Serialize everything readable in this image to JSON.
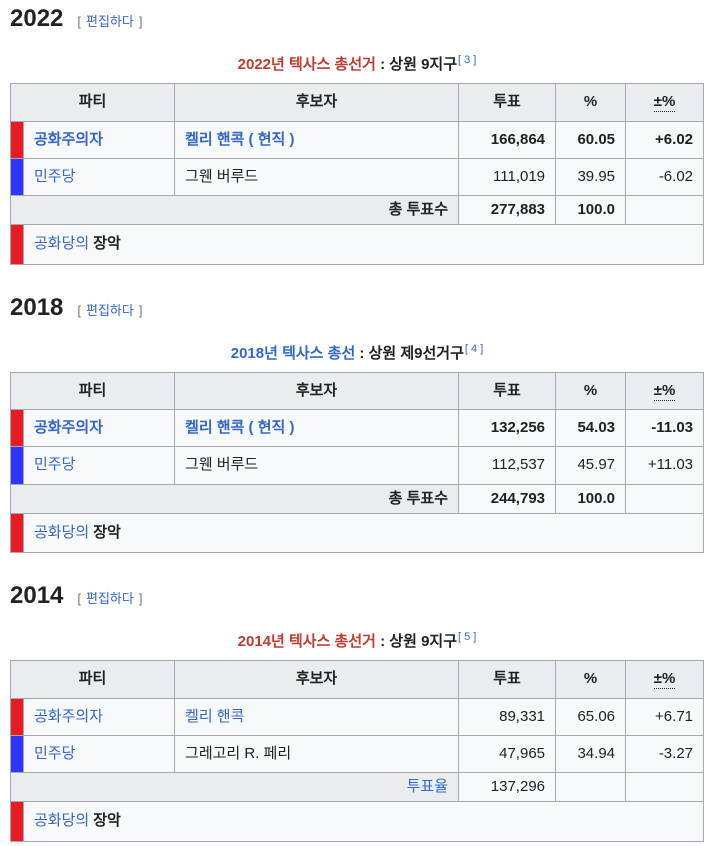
{
  "colors": {
    "republican": "#E81B23",
    "democratic": "#3333FF",
    "link_blue": "#3366CC",
    "red_link": "#BB3D30",
    "header_bg": "#EAECF0",
    "row_bg": "#F8F9FA",
    "border": "#A2A9B1",
    "text": "#202122"
  },
  "edit": {
    "bracket_open": "[",
    "label": "편집하다",
    "bracket_close": "]"
  },
  "table_headers": {
    "party": "파티",
    "candidate": "후보자",
    "votes": "투표",
    "percent": "%",
    "change": "±%"
  },
  "sections": [
    {
      "year": "2022",
      "caption": {
        "title": "2022년 텍사스 총선거",
        "suffix": " : 상원 9지구",
        "ref": "[ 3 ]"
      },
      "rows": [
        {
          "party": "공화주의자",
          "candidate": "켈리 핸콕 ( 현직 )",
          "votes": "166,864",
          "percent": "60.05",
          "change": "+6.02"
        },
        {
          "party": "민주당",
          "candidate": "그웬 버루드",
          "votes": "111,019",
          "percent": "39.95",
          "change": "-6.02"
        }
      ],
      "total": {
        "label": "총 투표수",
        "votes": "277,883",
        "percent": "100.0",
        "change": ""
      },
      "hold": {
        "link": "공화당의",
        "text": "장악"
      }
    },
    {
      "year": "2018",
      "caption": {
        "title": "2018년 텍사스 총선",
        "suffix": " : 상원 제9선거구",
        "ref": "[ 4 ]"
      },
      "rows": [
        {
          "party": "공화주의자",
          "candidate": "켈리 핸콕 ( 현직 )",
          "votes": "132,256",
          "percent": "54.03",
          "change": "-11.03"
        },
        {
          "party": "민주당",
          "candidate": "그웬 버루드",
          "votes": "112,537",
          "percent": "45.97",
          "change": "+11.03"
        }
      ],
      "total": {
        "label": "총 투표수",
        "votes": "244,793",
        "percent": "100.0",
        "change": ""
      },
      "hold": {
        "link": "공화당의",
        "text": "장악"
      }
    },
    {
      "year": "2014",
      "caption": {
        "title": "2014년 텍사스 총선거",
        "suffix": " : 상원 9지구",
        "ref": "[ 5 ]"
      },
      "rows": [
        {
          "party": "공화주의자",
          "candidate": "켈리 핸콕",
          "votes": "89,331",
          "percent": "65.06",
          "change": "+6.71"
        },
        {
          "party": "민주당",
          "candidate": "그레고리 R. 페리",
          "votes": "47,965",
          "percent": "34.94",
          "change": "-3.27"
        }
      ],
      "total": {
        "label": "투표율",
        "votes": "137,296",
        "percent": "",
        "change": ""
      },
      "hold": {
        "link": "공화당의",
        "text": "장악"
      }
    }
  ]
}
